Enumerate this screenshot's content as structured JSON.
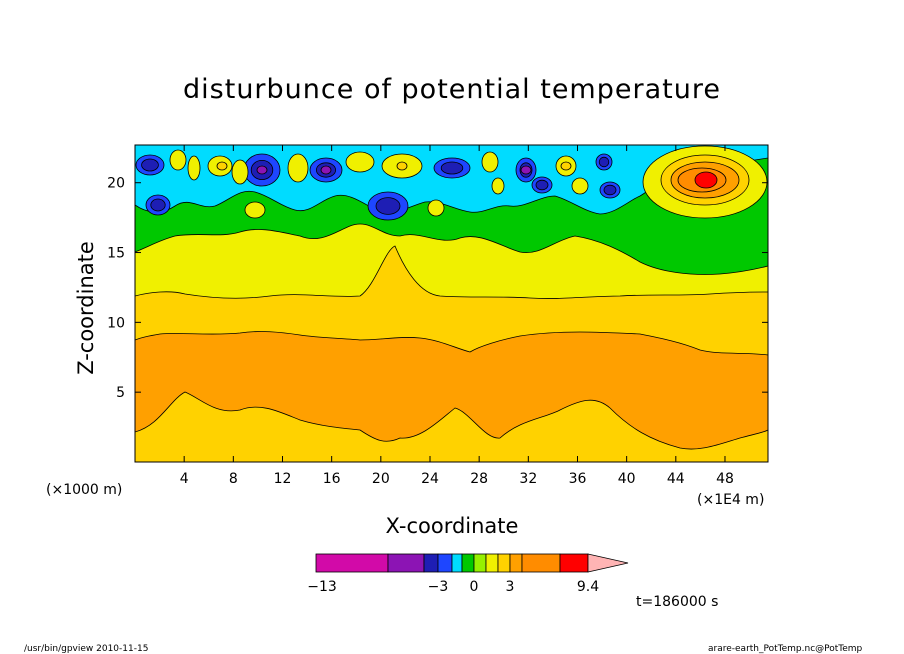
{
  "chart_data": {
    "type": "contour",
    "title": "disturbunce of potential temperature",
    "xlabel": "X-coordinate",
    "ylabel": "Z-coordinate",
    "x_unit_left": "(×1000 m)",
    "x_unit_right": "(×1E4 m)",
    "xticks": [
      "4",
      "8",
      "12",
      "16",
      "20",
      "24",
      "28",
      "32",
      "36",
      "40",
      "44",
      "48"
    ],
    "yticks": [
      "5",
      "10",
      "15",
      "20"
    ],
    "xlim": [
      0,
      51.5
    ],
    "ylim": [
      0,
      22.7
    ],
    "time_label": "t=186000 s",
    "colorbar": {
      "colors": [
        "#d20aa8",
        "#8c14b4",
        "#1e1eb4",
        "#1e46ff",
        "#00dcff",
        "#00c800",
        "#96f000",
        "#f0f000",
        "#ffd200",
        "#ffa000",
        "#ff8c00",
        "#ff0000",
        "#ff7873",
        "#ffb4b4"
      ],
      "labels": [
        {
          "text": "−13",
          "at": -13
        },
        {
          "text": "−3",
          "at": -3
        },
        {
          "text": "0",
          "at": 0
        },
        {
          "text": "3",
          "at": 3
        },
        {
          "text": "9.4",
          "at": 9.4
        }
      ]
    },
    "bands": [
      {
        "level": "3 to 4",
        "color": "#ffa000"
      },
      {
        "level": "2 to 3",
        "color": "#ffd200"
      },
      {
        "level": "1 to 2",
        "color": "#f0f000"
      },
      {
        "level": "0 to 1",
        "color": "#00c800"
      },
      {
        "level": "-1 to 0",
        "color": "#00dcff"
      },
      {
        "level": "-2 to -1",
        "color": "#1e46ff"
      },
      {
        "level": "-3 to -2",
        "color": "#1e1eb4"
      },
      {
        "level": "< -3",
        "color": "#8c14b4"
      },
      {
        "level": "> 4",
        "color": "#ff8c00"
      },
      {
        "level": "> 6",
        "color": "#ff0000"
      }
    ]
  },
  "footer": {
    "left": "/usr/bin/gpview   2010-11-15",
    "right": "arare-earth_PotTemp.nc@PotTemp"
  }
}
